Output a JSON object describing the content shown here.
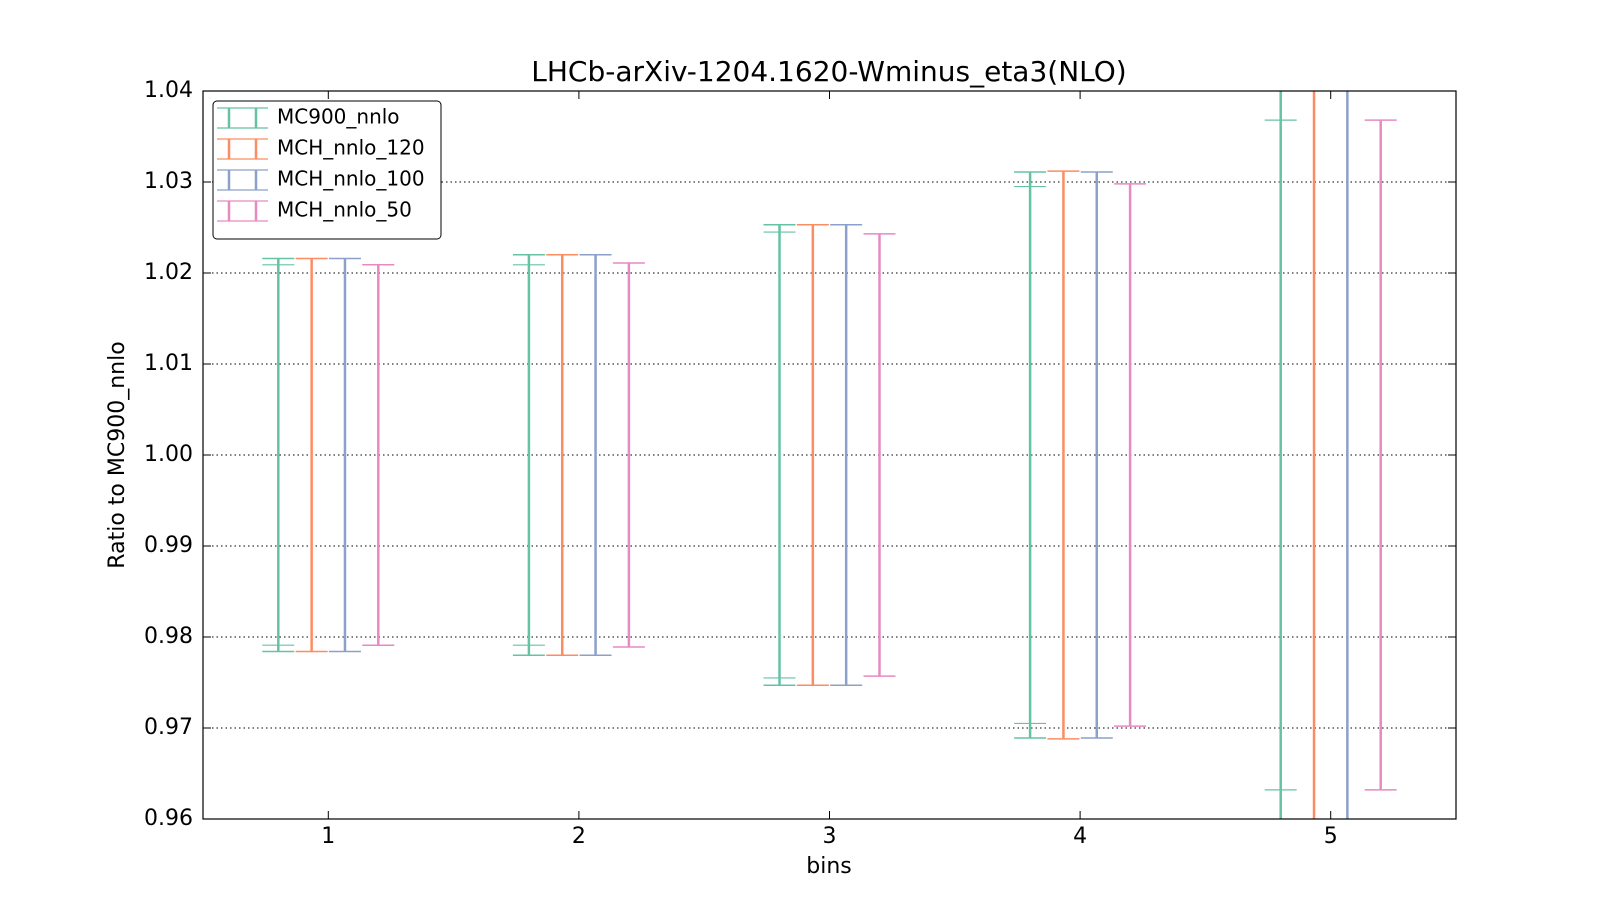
{
  "chart_data": {
    "type": "errorbar",
    "title": "LHCb-arXiv-1204.1620-Wminus_eta3(NLO)",
    "x_label": "bins",
    "y_label": "Ratio to MC900_nnlo",
    "x": [
      1,
      2,
      3,
      4,
      5
    ],
    "xlim": [
      0.5,
      5.5
    ],
    "xticks": [
      1,
      2,
      3,
      4,
      5
    ],
    "ylim": [
      0.96,
      1.04
    ],
    "yticks": [
      0.96,
      0.97,
      0.98,
      0.99,
      {
        "value": 1.0,
        "label": "1.00"
      },
      1.01,
      1.02,
      1.03,
      1.04
    ],
    "grid": true,
    "legend": "upper left",
    "series": [
      {
        "name": "MC900_nnlo",
        "color": "#66c2a5",
        "values": [
          1,
          1,
          1,
          1,
          1
        ],
        "errors": [
          0.0216,
          0.022,
          0.0253,
          0.0311,
          0.045
        ],
        "errors_inner": [
          0.0209,
          0.0209,
          0.0245,
          0.0295,
          0.0368
        ]
      },
      {
        "name": "MCH_nnlo_120",
        "color": "#fc8d62",
        "values": [
          1,
          1,
          1,
          1,
          1
        ],
        "errors": [
          0.0216,
          0.022,
          0.0253,
          0.0312,
          0.045
        ]
      },
      {
        "name": "MCH_nnlo_100",
        "color": "#8da0cb",
        "values": [
          1,
          1,
          1,
          1,
          1
        ],
        "errors": [
          0.0216,
          0.022,
          0.0253,
          0.0311,
          0.045
        ]
      },
      {
        "name": "MCH_nnlo_50",
        "color": "#e78ac3",
        "values": [
          1,
          1,
          1,
          1,
          1
        ],
        "errors": [
          0.0209,
          0.0211,
          0.0243,
          0.0298,
          0.0368
        ]
      }
    ]
  }
}
